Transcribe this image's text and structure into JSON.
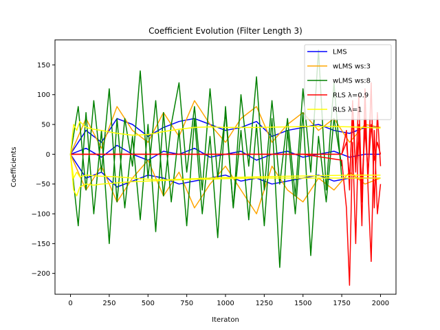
{
  "chart_data": {
    "type": "line",
    "title": "Coefficient Evolution (Filter Length 3)",
    "xlabel": "Iteraton",
    "ylabel": "Coefficients",
    "xlim": [
      -100,
      2100
    ],
    "ylim": [
      -235,
      192
    ],
    "xticks": [
      0,
      250,
      500,
      750,
      1000,
      1250,
      1500,
      1750,
      2000
    ],
    "yticks": [
      -200,
      -150,
      -100,
      -50,
      0,
      50,
      100,
      150
    ],
    "grid": false,
    "legend_position": "top-right",
    "series": [
      {
        "name": "LMS",
        "color": "#0000ff",
        "coefficients": [
          {
            "x": [
              0,
              100,
              200,
              300,
              400,
              500,
              600,
              700,
              800,
              900,
              1000,
              1100,
              1200,
              1300,
              1400,
              1500,
              1600,
              1700,
              1800,
              1900,
              2000
            ],
            "y": [
              0,
              40,
              20,
              60,
              50,
              30,
              45,
              55,
              60,
              50,
              40,
              45,
              55,
              30,
              40,
              45,
              50,
              40,
              35,
              45,
              45
            ]
          },
          {
            "x": [
              0,
              100,
              200,
              300,
              400,
              500,
              600,
              700,
              800,
              900,
              1000,
              1100,
              1200,
              1300,
              1400,
              1500,
              1600,
              1700,
              1800,
              1900,
              2000
            ],
            "y": [
              0,
              -40,
              -30,
              -55,
              -45,
              -35,
              -40,
              -50,
              -45,
              -40,
              -35,
              -45,
              -40,
              -50,
              -45,
              -40,
              -35,
              -45,
              -40,
              -40,
              -40
            ]
          },
          {
            "x": [
              0,
              100,
              200,
              300,
              400,
              500,
              600,
              700,
              800,
              900,
              1000,
              1100,
              1200,
              1300,
              1400,
              1500,
              1600,
              1700,
              1800,
              1900,
              2000
            ],
            "y": [
              0,
              10,
              -5,
              15,
              0,
              -10,
              5,
              0,
              10,
              -5,
              0,
              5,
              -10,
              0,
              5,
              -5,
              0,
              5,
              -5,
              0,
              0
            ]
          }
        ]
      },
      {
        "name": "wLMS ws:3",
        "color": "#ffa500",
        "coefficients": [
          {
            "x": [
              0,
              100,
              200,
              300,
              400,
              500,
              600,
              700,
              800,
              900,
              1000,
              1100,
              1200,
              1300,
              1400,
              1500,
              1600,
              1700,
              1800,
              1900,
              2000
            ],
            "y": [
              0,
              60,
              10,
              80,
              40,
              20,
              70,
              30,
              90,
              50,
              20,
              60,
              80,
              20,
              50,
              70,
              40,
              60,
              20,
              50,
              45
            ]
          },
          {
            "x": [
              0,
              100,
              200,
              300,
              400,
              500,
              600,
              700,
              800,
              900,
              1000,
              1100,
              1200,
              1300,
              1400,
              1500,
              1600,
              1700,
              1800,
              1900,
              2000
            ],
            "y": [
              0,
              -60,
              -20,
              -80,
              -40,
              -10,
              -70,
              -30,
              -90,
              -50,
              -20,
              -60,
              -100,
              -20,
              -60,
              -80,
              -40,
              -60,
              -30,
              -50,
              -40
            ]
          }
        ]
      },
      {
        "name": "wLMS ws:8",
        "color": "#008000",
        "coefficients": [
          {
            "x": [
              0,
              50,
              100,
              150,
              200,
              250,
              300,
              350,
              400,
              450,
              500,
              550,
              600,
              650,
              700,
              750,
              800,
              850,
              900,
              950,
              1000,
              1050,
              1100,
              1150,
              1200,
              1250,
              1300,
              1350,
              1400,
              1450,
              1500,
              1550,
              1600,
              1650,
              1700,
              1750
            ],
            "y": [
              0,
              80,
              -60,
              90,
              -30,
              110,
              -80,
              60,
              -20,
              140,
              -40,
              90,
              -70,
              50,
              120,
              -30,
              80,
              -60,
              110,
              -40,
              70,
              -90,
              100,
              -20,
              130,
              -60,
              90,
              -50,
              60,
              -70,
              110,
              -30,
              175,
              -60,
              120,
              -40
            ]
          },
          {
            "x": [
              0,
              50,
              100,
              150,
              200,
              250,
              300,
              350,
              400,
              450,
              500,
              550,
              600,
              650,
              700,
              750,
              800,
              850,
              900,
              950,
              1000,
              1050,
              1100,
              1150,
              1200,
              1250,
              1300,
              1350,
              1400,
              1450,
              1500,
              1550,
              1600,
              1650,
              1700,
              1750
            ],
            "y": [
              0,
              -120,
              70,
              -100,
              40,
              -150,
              60,
              -90,
              30,
              -110,
              50,
              -130,
              70,
              -80,
              40,
              -120,
              60,
              -100,
              30,
              -140,
              80,
              -90,
              40,
              -110,
              50,
              -120,
              60,
              -190,
              40,
              -100,
              70,
              -170,
              30,
              -80,
              60,
              -20
            ]
          }
        ]
      },
      {
        "name": "RLS λ=0.9",
        "color": "#ff0000",
        "coefficients": [
          {
            "x": [
              0,
              250,
              500,
              750,
              1000,
              1250,
              1500,
              1750,
              1780,
              1800,
              1820,
              1840,
              1860,
              1880,
              1900,
              1920,
              1940,
              1960,
              1980,
              2000
            ],
            "y": [
              0,
              0,
              0,
              0,
              0,
              0,
              0,
              0,
              40,
              -60,
              90,
              -30,
              100,
              -80,
              60,
              -40,
              120,
              -90,
              70,
              -20
            ]
          },
          {
            "x": [
              0,
              250,
              500,
              750,
              1000,
              1250,
              1500,
              1750,
              1780,
              1800,
              1820,
              1840,
              1860,
              1880,
              1900,
              1920,
              1940,
              1960,
              1980,
              2000
            ],
            "y": [
              0,
              0,
              0,
              0,
              0,
              0,
              0,
              -10,
              -90,
              -220,
              20,
              -150,
              50,
              -120,
              110,
              -60,
              -180,
              40,
              -100,
              -50
            ]
          },
          {
            "x": [
              0,
              250,
              500,
              750,
              1000,
              1250,
              1500,
              1750,
              1780,
              1800,
              1820,
              1840,
              1860,
              1880,
              1900,
              1920,
              1940,
              1960,
              1980,
              2000
            ],
            "y": [
              0,
              0,
              0,
              0,
              0,
              0,
              0,
              0,
              20,
              -40,
              60,
              -20,
              30,
              -50,
              40,
              -30,
              50,
              -10,
              20,
              0
            ]
          }
        ]
      },
      {
        "name": "RLS λ=1",
        "color": "#ffff00",
        "coefficients": [
          {
            "x": [
              0,
              20,
              40,
              60,
              100,
              150,
              200,
              300,
              400,
              500,
              600,
              700,
              800,
              900,
              1000,
              1200,
              1400,
              1600,
              1800,
              2000
            ],
            "y": [
              0,
              50,
              40,
              55,
              45,
              42,
              40,
              35,
              32,
              33,
              38,
              42,
              45,
              46,
              45,
              45,
              46,
              47,
              46,
              44
            ]
          },
          {
            "x": [
              0,
              20,
              40,
              60,
              100,
              150,
              200,
              300,
              400,
              500,
              600,
              700,
              800,
              900,
              1000,
              1200,
              1400,
              1600,
              1800,
              2000
            ],
            "y": [
              0,
              -40,
              -30,
              -38,
              -35,
              -36,
              -37,
              -38,
              -40,
              -42,
              -43,
              -42,
              -41,
              -40,
              -39,
              -38,
              -37,
              -36,
              -35,
              -35
            ]
          },
          {
            "x": [
              0,
              20,
              40,
              60,
              100,
              150,
              200,
              300,
              400,
              500,
              600,
              700,
              800,
              900,
              1000,
              1200,
              1400,
              1600,
              1800,
              2000
            ],
            "y": [
              0,
              -60,
              -70,
              -55,
              -50,
              -52,
              -50,
              -48,
              -46,
              -45,
              -44,
              -43,
              -42,
              -42,
              -41,
              -40,
              -40,
              -40,
              -40,
              -40
            ]
          }
        ]
      }
    ]
  }
}
